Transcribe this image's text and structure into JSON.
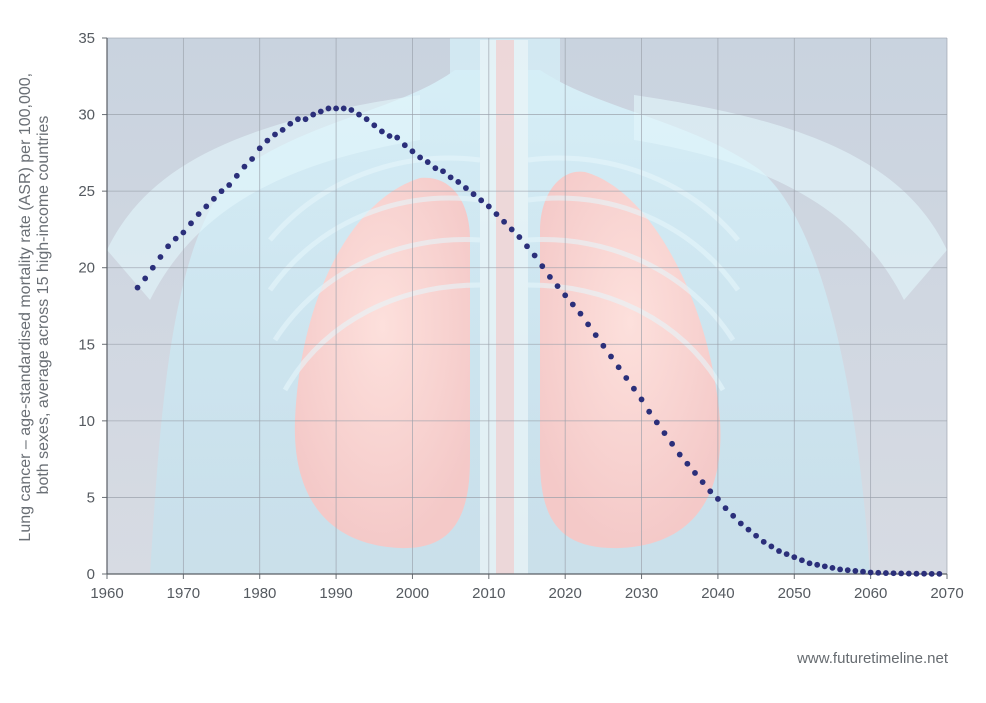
{
  "chart_data": {
    "type": "scatter",
    "ylabel_lines": [
      "Lung cancer – age-standardised mortality rate (ASR) per 100,000,",
      "both sexes, average across 15 high-income countries"
    ],
    "xlim": [
      1960,
      2070
    ],
    "ylim": [
      0,
      35
    ],
    "x_ticks": [
      "1960",
      "1970",
      "1980",
      "1990",
      "2000",
      "2010",
      "2020",
      "2030",
      "2040",
      "2050",
      "2060",
      "2070"
    ],
    "y_ticks": [
      "0",
      "5",
      "10",
      "15",
      "20",
      "25",
      "30",
      "35"
    ],
    "grid": true,
    "marker_color": "#2b2f7a",
    "series": [
      {
        "x": [
          1964,
          1965,
          1966,
          1967,
          1968,
          1969,
          1970,
          1971,
          1972,
          1973,
          1974,
          1975,
          1976,
          1977,
          1978,
          1979,
          1980,
          1981,
          1982,
          1983,
          1984,
          1985,
          1986,
          1987,
          1988,
          1989,
          1990,
          1991,
          1992,
          1993,
          1994,
          1995,
          1996,
          1997,
          1998,
          1999,
          2000,
          2001,
          2002,
          2003,
          2004,
          2005,
          2006,
          2007,
          2008,
          2009,
          2010,
          2011,
          2012,
          2013,
          2014,
          2015,
          2016,
          2017,
          2018,
          2019,
          2020,
          2021,
          2022,
          2023,
          2024,
          2025,
          2026,
          2027,
          2028,
          2029,
          2030,
          2031,
          2032,
          2033,
          2034,
          2035,
          2036,
          2037,
          2038,
          2039,
          2040,
          2041,
          2042,
          2043,
          2044,
          2045,
          2046,
          2047,
          2048,
          2049,
          2050,
          2051,
          2052,
          2053,
          2054,
          2055,
          2056,
          2057,
          2058,
          2059,
          2060,
          2061,
          2062,
          2063,
          2064,
          2065,
          2066,
          2067,
          2068,
          2069
        ],
        "y": [
          18.7,
          19.3,
          20.0,
          20.7,
          21.4,
          21.9,
          22.3,
          22.9,
          23.5,
          24.0,
          24.5,
          25.0,
          25.4,
          26.0,
          26.6,
          27.1,
          27.8,
          28.3,
          28.7,
          29.0,
          29.4,
          29.7,
          29.7,
          30.0,
          30.2,
          30.4,
          30.4,
          30.4,
          30.3,
          30.0,
          29.7,
          29.3,
          28.9,
          28.6,
          28.5,
          28.0,
          27.6,
          27.2,
          26.9,
          26.5,
          26.3,
          25.9,
          25.6,
          25.2,
          24.8,
          24.4,
          24.0,
          23.5,
          23.0,
          22.5,
          22.0,
          21.4,
          20.8,
          20.1,
          19.4,
          18.8,
          18.2,
          17.6,
          17.0,
          16.3,
          15.6,
          14.9,
          14.2,
          13.5,
          12.8,
          12.1,
          11.4,
          10.6,
          9.9,
          9.2,
          8.5,
          7.8,
          7.2,
          6.6,
          6.0,
          5.4,
          4.9,
          4.3,
          3.8,
          3.3,
          2.9,
          2.5,
          2.1,
          1.8,
          1.5,
          1.3,
          1.1,
          0.9,
          0.7,
          0.6,
          0.5,
          0.4,
          0.3,
          0.25,
          0.2,
          0.15,
          0.1,
          0.08,
          0.06,
          0.05,
          0.04,
          0.03,
          0.02,
          0.02,
          0.01,
          0.01
        ]
      }
    ]
  },
  "footer": {
    "credit": "www.futuretimeline.net"
  }
}
